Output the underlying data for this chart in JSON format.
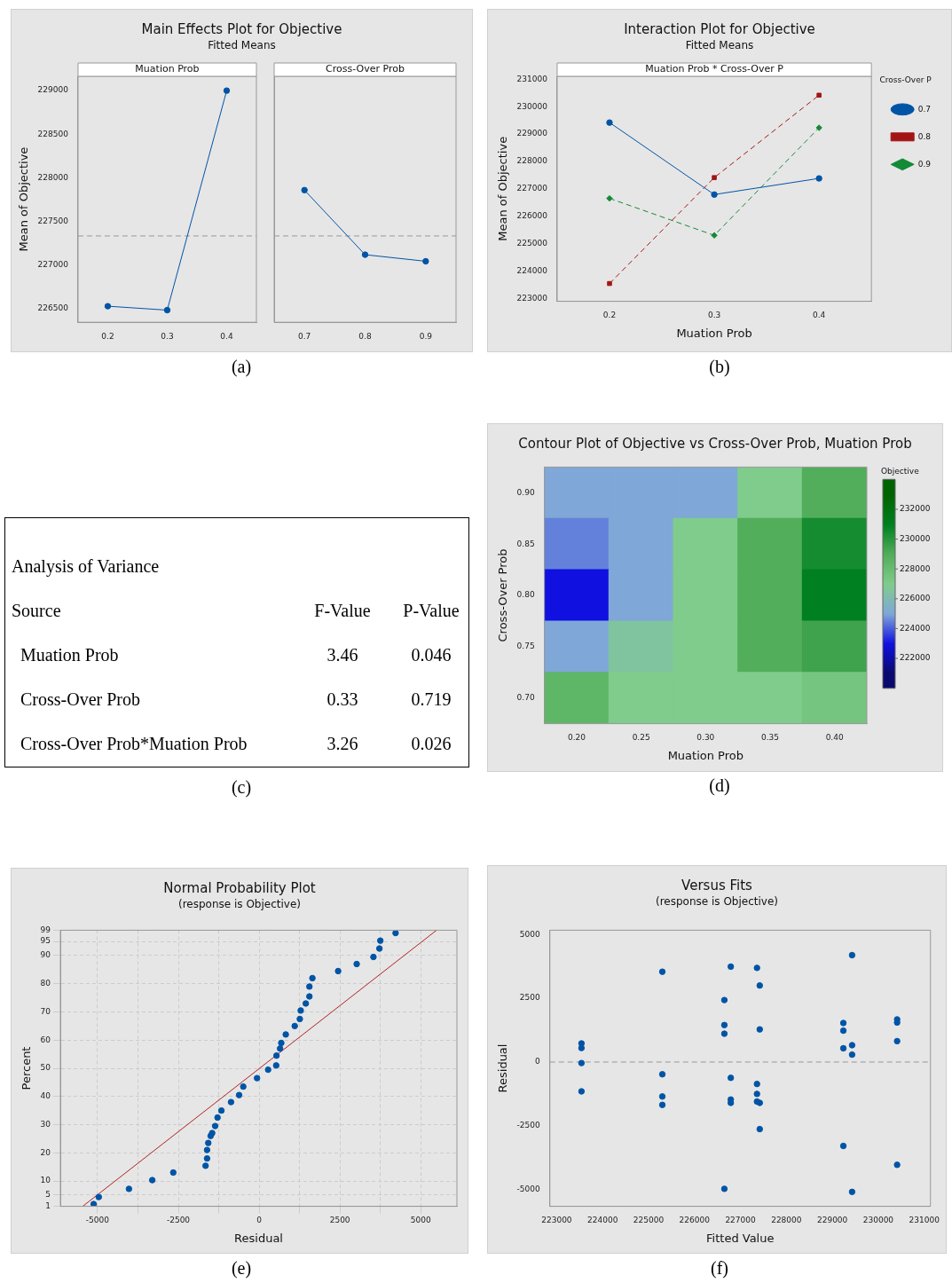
{
  "chart_data": [
    {
      "type": "line",
      "title": "Main Effects Plot for Objective",
      "subtitle": "Fitted Means",
      "ylabel": "Mean of Objective",
      "categories": [
        "0.2",
        "0.3",
        "0.4"
      ],
      "series": [
        {
          "color": "#0054a6",
          "values": [
            226530,
            226485,
            229000
          ]
        }
      ],
      "marker": "circle",
      "ylim": [
        226346,
        229164
      ],
      "yticks": [
        226500,
        227000,
        227500,
        228000,
        228500,
        229000
      ],
      "ref_lines": [
        {
          "axis": "y",
          "value": 227335,
          "color": "#999999",
          "line_style": "dashed"
        }
      ],
      "annotations": [
        "Muation Prob",
        "(a)"
      ]
    },
    {
      "type": "line",
      "categories": [
        "0.7",
        "0.8",
        "0.9"
      ],
      "series": [
        {
          "color": "#0054a6",
          "values": [
            227860,
            227120,
            227045
          ]
        }
      ],
      "marker": "circle",
      "ylim": [
        226346,
        229164
      ],
      "yticks": [
        226500,
        227000,
        227500,
        228000,
        228500,
        229000
      ],
      "tick_labels": "x",
      "ref_lines": [
        {
          "axis": "y",
          "value": 227335,
          "color": "#999999",
          "line_style": "dashed"
        }
      ],
      "annotations": [
        "Cross-Over Prob"
      ]
    },
    {
      "type": "line",
      "title": "Interaction Plot for Objective",
      "subtitle": "Fitted Means",
      "xlabel": "Muation Prob",
      "ylabel": "Mean of Objective",
      "legend_title": "Cross-Over P",
      "legend": "top right",
      "categories": [
        "0.2",
        "0.3",
        "0.4"
      ],
      "series": [
        {
          "name": "0.7",
          "color": "#0054a6",
          "marker": "circle",
          "line_style": "solid",
          "values": [
            229420,
            226790,
            227380
          ]
        },
        {
          "name": "0.8",
          "color": "#a31515",
          "marker": "square",
          "line_style": "dashed",
          "values": [
            223540,
            227410,
            230420
          ]
        },
        {
          "name": "0.9",
          "color": "#138a36",
          "marker": "diamond",
          "line_style": "dashed",
          "values": [
            226650,
            225300,
            229230
          ]
        }
      ],
      "ylim": [
        222890,
        231110
      ],
      "yticks": [
        223000,
        224000,
        225000,
        226000,
        227000,
        228000,
        229000,
        230000,
        231000
      ],
      "annotations": [
        "Muation Prob * Cross-Over P",
        "(b)"
      ]
    },
    {
      "type": "other",
      "title": "Analysis of Variance",
      "annotations": [
        "Source",
        "F-Value",
        "P-Value",
        "Muation Prob",
        "3.46",
        "0.046",
        "Cross-Over Prob",
        "0.33",
        "0.719",
        "Cross-Over Prob*Muation Prob",
        "3.26",
        "0.026",
        "(c)"
      ]
    },
    {
      "type": "heatmap",
      "title": "Contour Plot of Objective vs Cross-Over Prob, Muation Prob",
      "xlabel": "Muation Prob",
      "ylabel": "Cross-Over Prob",
      "clabel": "Objective",
      "clim": [
        220000,
        234000
      ],
      "categories": [
        "0.20",
        "0.25",
        "0.30",
        "0.35",
        "0.40"
      ],
      "y_categories": [
        "0.90",
        "0.85",
        "0.80",
        "0.75",
        "0.70"
      ],
      "cells": [
        [
          225000,
          225000,
          225000,
          227000,
          229000
        ],
        [
          224500,
          225000,
          227000,
          229000,
          230500
        ],
        [
          223000,
          225000,
          227000,
          229000,
          231000
        ],
        [
          225000,
          226500,
          227000,
          229000,
          229500
        ],
        [
          228500,
          227000,
          227000,
          227000,
          227500
        ]
      ],
      "cticks": [
        222000,
        224000,
        226000,
        228000,
        230000,
        232000
      ],
      "colors": [
        "#0a0a6e",
        "#1010e0",
        "#7fa7d8",
        "#80cc8c",
        "#52ae5a",
        "#008020",
        "#006400"
      ],
      "annotations": [
        "(d)"
      ]
    },
    {
      "type": "scatter",
      "title": "Normal Probability Plot",
      "subtitle": "(response is Objective)",
      "xlabel": "Residual",
      "ylabel": "Percent",
      "grid": true,
      "series": [
        {
          "type": "scatter",
          "color": "#0054a6",
          "marker": "circle",
          "x": [
            -5120,
            -4963,
            -4028,
            -3306,
            -2657,
            -1657,
            -1611,
            -1611,
            -1574,
            -1500,
            -1454,
            -1361,
            -1287,
            -1167,
            -870,
            -620,
            -491,
            -65,
            278,
            528,
            537,
            648,
            685,
            824,
            1102,
            1259,
            1287,
            1444,
            1556,
            1556,
            1648,
            2444,
            3019,
            3537,
            3722,
            3750,
            4222
          ],
          "values": [
            1.8,
            4.3,
            7.2,
            10.3,
            13,
            15.4,
            18,
            21,
            23.5,
            26,
            27,
            29.5,
            32.5,
            35,
            38,
            40.5,
            43.5,
            46.5,
            49.5,
            51,
            54.5,
            57,
            59,
            62,
            65,
            67.5,
            70.5,
            73,
            75.5,
            79,
            82,
            84.5,
            87,
            89.5,
            92.5,
            95.3,
            98
          ]
        },
        {
          "type": "line",
          "color": "#b22222",
          "marker": "none",
          "line_style": "solid",
          "x": [
            -5460,
            5490
          ],
          "values": [
            1,
            99
          ]
        }
      ],
      "xlim": [
        -6150,
        6120
      ],
      "xticks": [
        -5000,
        {
          "value": -3750,
          "label": null
        },
        -2500,
        {
          "value": -1250,
          "label": null
        },
        0,
        {
          "value": 1250,
          "label": null
        },
        2500,
        {
          "value": 3750,
          "label": null
        },
        5000
      ],
      "ylim": [
        1,
        99
      ],
      "yticks": [
        1,
        5,
        10,
        20,
        30,
        40,
        50,
        60,
        70,
        80,
        90,
        95,
        99
      ],
      "annotations": [
        "(e)"
      ]
    },
    {
      "type": "scatter",
      "title": "Versus Fits",
      "subtitle": "(response is Objective)",
      "xlabel": "Fitted Value",
      "ylabel": "Residual",
      "marker": "circle",
      "series": [
        {
          "color": "#0054a6",
          "x": [
            223540,
            223540,
            223540,
            223540,
            225300,
            225300,
            225300,
            225300,
            226650,
            226650,
            226650,
            226650,
            226790,
            226790,
            226790,
            226790,
            227360,
            227360,
            227360,
            227360,
            227420,
            227420,
            227420,
            227420,
            229240,
            229240,
            229240,
            229240,
            229430,
            229430,
            229430,
            229430,
            230410,
            230410,
            230410,
            230410
          ],
          "values": [
            730,
            550,
            -40,
            -1150,
            3540,
            -480,
            -1350,
            -1680,
            2430,
            1450,
            1110,
            -4970,
            3740,
            -620,
            -1470,
            -1600,
            3690,
            -860,
            -1250,
            -1550,
            3000,
            1280,
            -1600,
            -2630,
            1530,
            1230,
            540,
            -3290,
            4190,
            660,
            290,
            -5090,
            1670,
            1550,
            820,
            -4030
          ]
        }
      ],
      "xlim": [
        222852,
        231136
      ],
      "xticks": [
        223000,
        224000,
        225000,
        226000,
        227000,
        228000,
        229000,
        230000,
        231000
      ],
      "ylim": [
        -5657,
        5167
      ],
      "yticks": [
        -5000,
        -2500,
        0,
        2500,
        5000
      ],
      "ref_lines": [
        {
          "axis": "y",
          "value": 0,
          "color": "#999999",
          "line_style": "dashed"
        }
      ],
      "annotations": [
        "(f)"
      ]
    }
  ]
}
